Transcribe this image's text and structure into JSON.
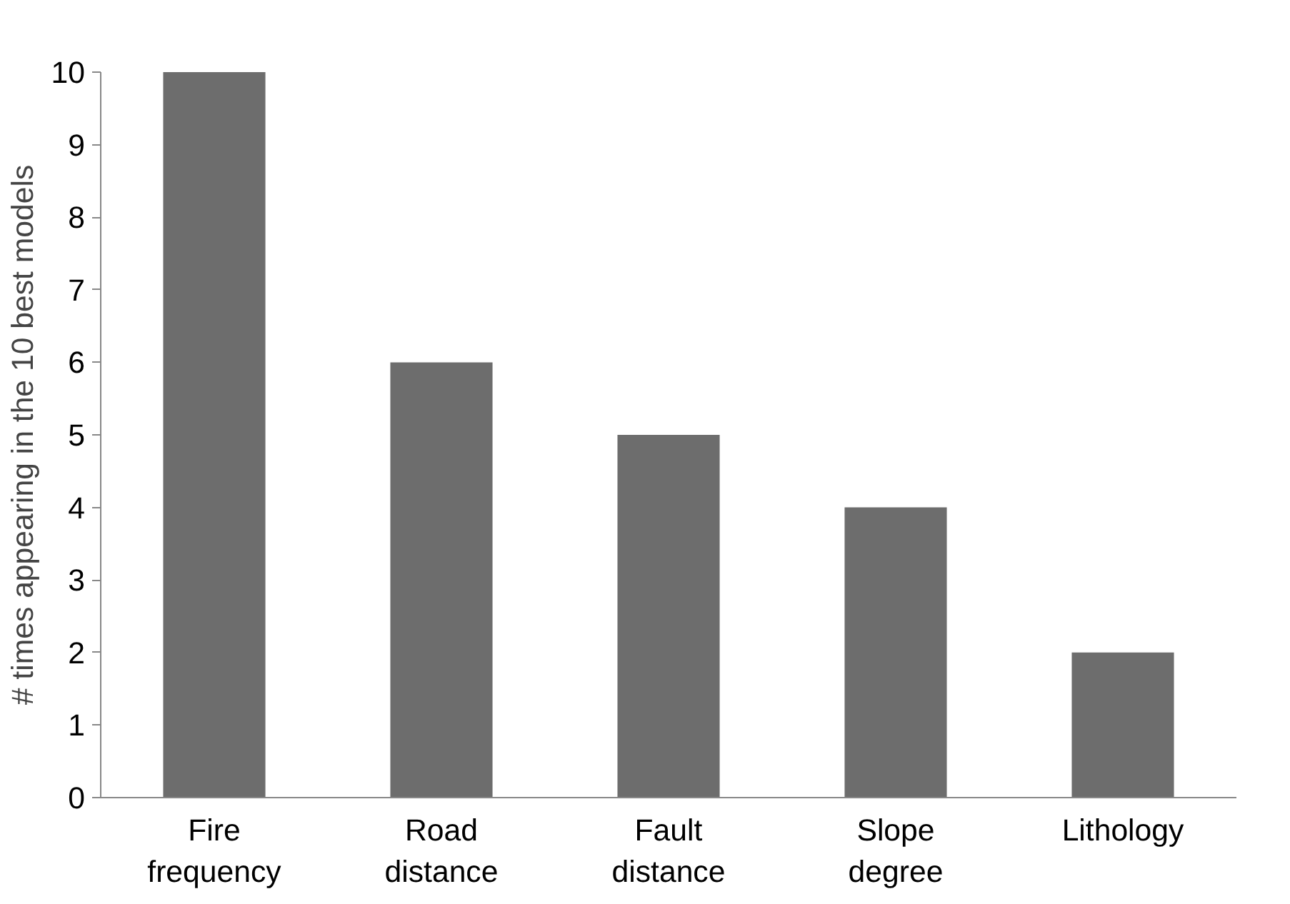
{
  "chart_data": {
    "type": "bar",
    "ylabel": "# times appearing in the 10 best models",
    "categories": [
      "Fire\nfrequency",
      "Road\ndistance",
      "Fault\ndistance",
      "Slope\ndegree",
      "Lithology"
    ],
    "values": [
      10,
      6,
      5,
      4,
      2
    ],
    "color": "#6d6d6d",
    "ylim": [
      0,
      10
    ],
    "yticks": [
      0,
      1,
      2,
      3,
      4,
      5,
      6,
      7,
      8,
      9,
      10
    ],
    "grid": false
  }
}
